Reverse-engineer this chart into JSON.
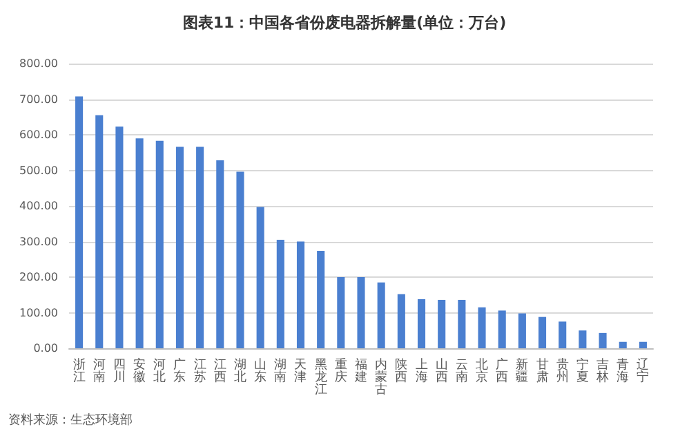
{
  "chart_data": {
    "type": "bar",
    "title": "图表11：中国各省份废电器拆解量(单位：万台)",
    "categories": [
      "浙江",
      "河南",
      "四川",
      "安徽",
      "河北",
      "广东",
      "江苏",
      "江西",
      "湖北",
      "山东",
      "湖南",
      "天津",
      "黑龙江",
      "重庆",
      "福建",
      "内蒙古",
      "陕西",
      "上海",
      "山西",
      "云南",
      "北京",
      "广西",
      "新疆",
      "甘肃",
      "贵州",
      "宁夏",
      "吉林",
      "青海",
      "辽宁"
    ],
    "values": [
      708,
      655,
      623,
      590,
      583,
      566,
      566,
      528,
      496,
      397,
      305,
      300,
      274,
      200,
      200,
      185,
      152,
      138,
      136,
      136,
      115,
      106,
      98,
      88,
      75,
      50,
      43,
      18,
      18
    ],
    "color": "#4a7fd0",
    "ylim": [
      0,
      800
    ],
    "yticks": [
      {
        "value": 0,
        "label": "0.00"
      },
      {
        "value": 100,
        "label": "100.00"
      },
      {
        "value": 200,
        "label": "200.00"
      },
      {
        "value": 300,
        "label": "300.00"
      },
      {
        "value": 400,
        "label": "400.00"
      },
      {
        "value": 500,
        "label": "500.00"
      },
      {
        "value": 600,
        "label": "600.00"
      },
      {
        "value": 700,
        "label": "700.00"
      },
      {
        "value": 800,
        "label": "800.00"
      }
    ],
    "grid": "y",
    "annotations": [
      "资料来源：生态环境部"
    ]
  }
}
